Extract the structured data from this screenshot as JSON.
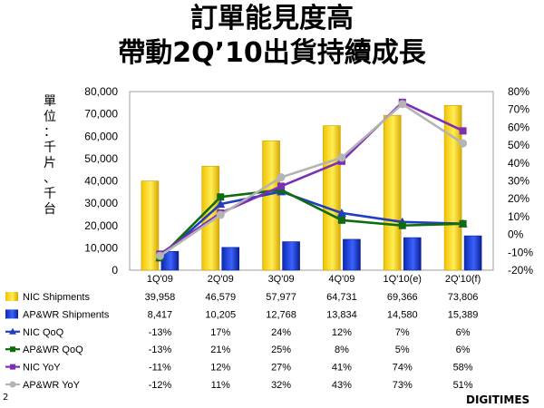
{
  "title": {
    "line1": "訂單能見度高",
    "line2": "帶動2Q’10出貨持續成長"
  },
  "unit_label": [
    "單",
    "位",
    "：",
    "千",
    "片",
    "、",
    "千",
    "台"
  ],
  "page_number": "2",
  "logo_text": "DIGITIMES",
  "chart_data": {
    "type": "bar",
    "title": "訂單能見度高 帶動2Q’10出貨持續成長",
    "ylabel": "單位：千片、千台",
    "categories": [
      "1Q'09",
      "2Q'09",
      "3Q'09",
      "4Q'09",
      "1Q'10(e)",
      "2Q'10(f)"
    ],
    "y_left": {
      "min": 0,
      "max": 80000,
      "step": 10000,
      "tick_labels": [
        "0",
        "10,000",
        "20,000",
        "30,000",
        "40,000",
        "50,000",
        "60,000",
        "70,000",
        "80,000"
      ]
    },
    "y_right": {
      "min": -20,
      "max": 80,
      "step": 10,
      "tick_labels": [
        "-20%",
        "-10%",
        "0%",
        "10%",
        "20%",
        "30%",
        "40%",
        "50%",
        "60%",
        "70%",
        "80%"
      ]
    },
    "series": [
      {
        "name": "NIC Shipments",
        "kind": "bar",
        "axis": "left",
        "color": "#FFD700",
        "values": [
          39958,
          46579,
          57977,
          64731,
          69366,
          73806
        ],
        "labels": [
          "39,958",
          "46,579",
          "57,977",
          "64,731",
          "69,366",
          "73,806"
        ]
      },
      {
        "name": "AP&WR Shipments",
        "kind": "bar",
        "axis": "left",
        "color": "#1F3FD9",
        "values": [
          8417,
          10205,
          12768,
          13834,
          14580,
          15389
        ],
        "labels": [
          "8,417",
          "10,205",
          "12,768",
          "13,834",
          "14,580",
          "15,389"
        ]
      },
      {
        "name": "NIC QoQ",
        "kind": "line",
        "axis": "right",
        "color": "#1F3FBF",
        "marker": "triangle",
        "values": [
          -13,
          17,
          24,
          12,
          7,
          6
        ],
        "labels": [
          "-13%",
          "17%",
          "24%",
          "12%",
          "7%",
          "6%"
        ]
      },
      {
        "name": "AP&WR QoQ",
        "kind": "line",
        "axis": "right",
        "color": "#0E6B0E",
        "marker": "square",
        "values": [
          -13,
          21,
          25,
          8,
          5,
          6
        ],
        "labels": [
          "-13%",
          "21%",
          "25%",
          "8%",
          "5%",
          "6%"
        ]
      },
      {
        "name": "NIC YoY",
        "kind": "line",
        "axis": "right",
        "color": "#7B2FB5",
        "marker": "square",
        "values": [
          -11,
          12,
          27,
          41,
          74,
          58
        ],
        "labels": [
          "-11%",
          "12%",
          "27%",
          "41%",
          "74%",
          "58%"
        ]
      },
      {
        "name": "AP&WR YoY",
        "kind": "line",
        "axis": "right",
        "color": "#B4B4B4",
        "marker": "circle",
        "values": [
          -12,
          11,
          32,
          43,
          73,
          51
        ],
        "labels": [
          "-12%",
          "11%",
          "32%",
          "43%",
          "73%",
          "51%"
        ]
      }
    ]
  }
}
